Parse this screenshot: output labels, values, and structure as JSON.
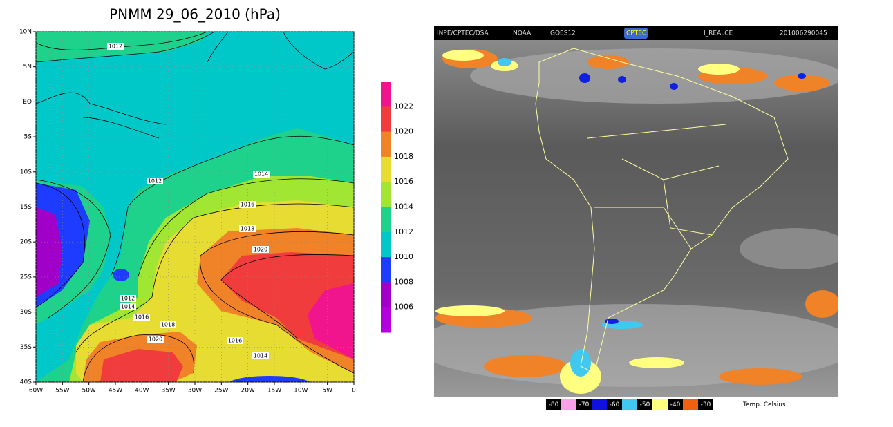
{
  "left_map": {
    "title": "PNMM 29_06_2010 (hPa)",
    "lat_labels": [
      "10N",
      "5N",
      "EQ",
      "5S",
      "10S",
      "15S",
      "20S",
      "25S",
      "30S",
      "35S",
      "40S"
    ],
    "lon_labels": [
      "60W",
      "55W",
      "50W",
      "45W",
      "40W",
      "35W",
      "30W",
      "25W",
      "20W",
      "15W",
      "10W",
      "5W",
      "0"
    ],
    "contour_labels": [
      "1012",
      "1012",
      "1014",
      "1016",
      "1018",
      "1020",
      "1012",
      "1014",
      "1016",
      "1018",
      "1020",
      "1016",
      "1014"
    ],
    "colorbar_labels": [
      "1022",
      "1020",
      "1018",
      "1016",
      "1014",
      "1012",
      "1010",
      "1008",
      "1006"
    ]
  },
  "right_image": {
    "header": [
      "INPE/CPTEC/DSA",
      "NOAA",
      "GOES12",
      "CPTEC",
      "I_REALCE",
      "201006290045"
    ],
    "legend_labels": [
      "-80",
      "-70",
      "-60",
      "-50",
      "-40",
      "-30"
    ],
    "legend_title": "Temp. Celsius"
  }
}
